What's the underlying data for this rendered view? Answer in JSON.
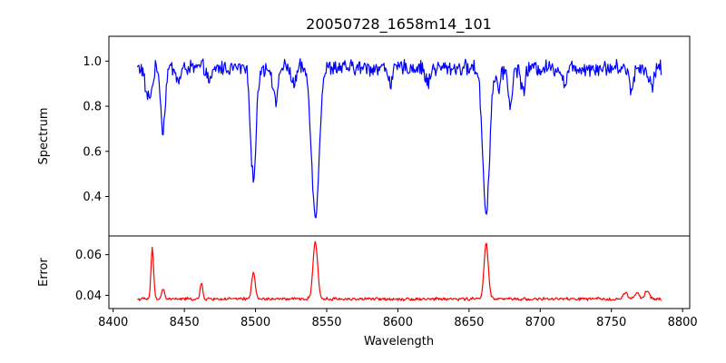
{
  "chart_data": {
    "type": "line",
    "title": "20050728_1658m14_101",
    "xlabel": "Wavelength",
    "x_range": [
      8417,
      8785
    ],
    "xlim": [
      8397,
      8805
    ],
    "xticks": [
      8400,
      8450,
      8500,
      8550,
      8600,
      8650,
      8700,
      8750,
      8800
    ],
    "grid": false,
    "panels": [
      {
        "name": "spectrum",
        "ylabel": "Spectrum",
        "ylim": [
          0.225,
          1.11
        ],
        "yticks": [
          0.4,
          0.6,
          0.8,
          1.0
        ],
        "ytick_labels": [
          "0.4",
          "0.6",
          "0.8",
          "1.0"
        ],
        "series": [
          {
            "color": "#0000ff",
            "baseline": 0.97,
            "noise": 0.028,
            "features": [
              {
                "center": 8424,
                "depth": 0.13,
                "width": 1.6
              },
              {
                "center": 8427,
                "depth": 0.08,
                "width": 1.2
              },
              {
                "center": 8435,
                "depth": 0.28,
                "width": 1.5
              },
              {
                "center": 8446,
                "depth": 0.06,
                "width": 1.5
              },
              {
                "center": 8468,
                "depth": 0.07,
                "width": 1.5
              },
              {
                "center": 8498.5,
                "depth": 0.5,
                "width": 1.9
              },
              {
                "center": 8514,
                "depth": 0.16,
                "width": 1.5
              },
              {
                "center": 8527,
                "depth": 0.08,
                "width": 1.5
              },
              {
                "center": 8542,
                "depth": 0.66,
                "width": 2.6
              },
              {
                "center": 8595,
                "depth": 0.06,
                "width": 1.5
              },
              {
                "center": 8621,
                "depth": 0.07,
                "width": 1.5
              },
              {
                "center": 8662,
                "depth": 0.64,
                "width": 2.4
              },
              {
                "center": 8671,
                "depth": 0.09,
                "width": 1.5
              },
              {
                "center": 8679,
                "depth": 0.16,
                "width": 1.5
              },
              {
                "center": 8688,
                "depth": 0.1,
                "width": 1.5
              },
              {
                "center": 8717,
                "depth": 0.07,
                "width": 1.5
              },
              {
                "center": 8764,
                "depth": 0.09,
                "width": 1.5
              },
              {
                "center": 8778,
                "depth": 0.08,
                "width": 1.5
              }
            ]
          }
        ]
      },
      {
        "name": "error",
        "ylabel": "Error",
        "ylim": [
          0.0335,
          0.0692
        ],
        "yticks": [
          0.04,
          0.06
        ],
        "ytick_labels": [
          "0.04",
          "0.06"
        ],
        "series": [
          {
            "color": "#ff0000",
            "baseline": 0.0382,
            "noise": 0.0006,
            "features": [
              {
                "center": 8427.5,
                "depth": -0.025,
                "width": 0.9
              },
              {
                "center": 8435,
                "depth": -0.005,
                "width": 1.0
              },
              {
                "center": 8462,
                "depth": -0.0075,
                "width": 0.9
              },
              {
                "center": 8498.5,
                "depth": -0.0135,
                "width": 1.2
              },
              {
                "center": 8542,
                "depth": -0.0285,
                "width": 1.6
              },
              {
                "center": 8662,
                "depth": -0.0275,
                "width": 1.5
              },
              {
                "center": 8760,
                "depth": -0.003,
                "width": 1.5
              },
              {
                "center": 8768,
                "depth": -0.003,
                "width": 1.5
              },
              {
                "center": 8775,
                "depth": -0.004,
                "width": 1.5
              }
            ]
          }
        ]
      }
    ]
  }
}
